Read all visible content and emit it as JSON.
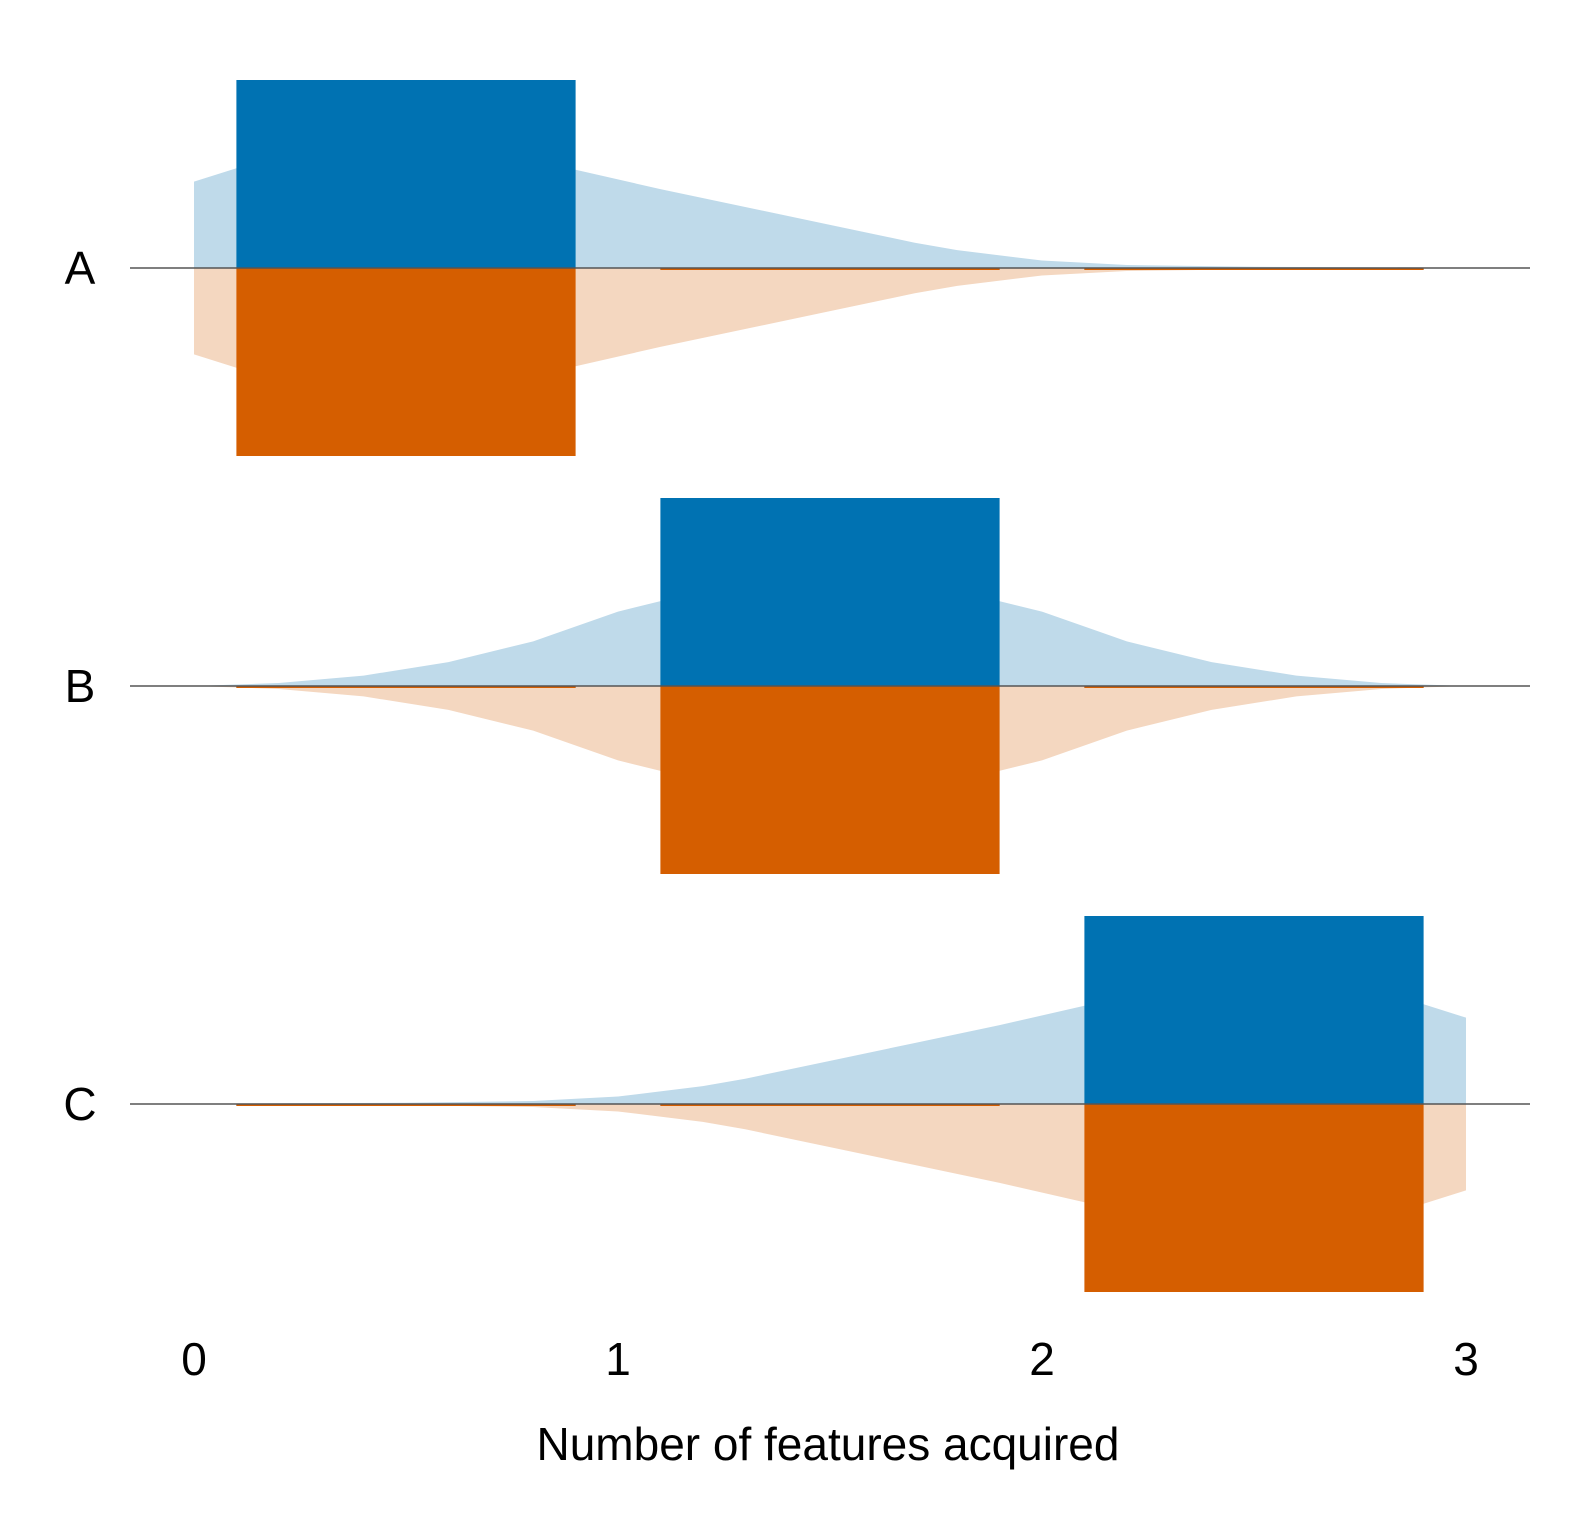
{
  "chart_data": {
    "type": "violin-bar",
    "xlabel": "Number of features acquired",
    "xlim": [
      0,
      3
    ],
    "x_ticks": [
      "0",
      "1",
      "2",
      "3"
    ],
    "colors": {
      "top_bar": "#0072b2",
      "top_density": "#bfdaea",
      "bottom_bar": "#d55e00",
      "bottom_density": "#f4d7c0",
      "baseline": "#555555"
    },
    "rows": [
      {
        "label": "A",
        "top": {
          "bars": [
            {
              "x": 0,
              "value": 1.0
            },
            {
              "x": 1,
              "value": 0.0
            },
            {
              "x": 2,
              "value": 0.0
            }
          ],
          "density": [
            {
              "x": 0.0,
              "y": 0.58
            },
            {
              "x": 0.1,
              "y": 0.67
            },
            {
              "x": 0.4,
              "y": 0.72
            },
            {
              "x": 0.9,
              "y": 0.66
            },
            {
              "x": 1.1,
              "y": 0.53
            },
            {
              "x": 1.3,
              "y": 0.41
            },
            {
              "x": 1.5,
              "y": 0.29
            },
            {
              "x": 1.7,
              "y": 0.17
            },
            {
              "x": 1.8,
              "y": 0.12
            },
            {
              "x": 2.0,
              "y": 0.05
            },
            {
              "x": 2.2,
              "y": 0.02
            },
            {
              "x": 2.5,
              "y": 0.008
            },
            {
              "x": 2.9,
              "y": 0.004
            }
          ]
        },
        "bottom": {
          "bars": [
            {
              "x": 0,
              "value": 1.0
            },
            {
              "x": 1,
              "value": 0.0
            },
            {
              "x": 2,
              "value": 0.0
            }
          ],
          "density": [
            {
              "x": 0.0,
              "y": 0.58
            },
            {
              "x": 0.1,
              "y": 0.67
            },
            {
              "x": 0.4,
              "y": 0.72
            },
            {
              "x": 0.9,
              "y": 0.66
            },
            {
              "x": 1.1,
              "y": 0.53
            },
            {
              "x": 1.3,
              "y": 0.41
            },
            {
              "x": 1.5,
              "y": 0.29
            },
            {
              "x": 1.7,
              "y": 0.17
            },
            {
              "x": 1.8,
              "y": 0.12
            },
            {
              "x": 2.0,
              "y": 0.05
            },
            {
              "x": 2.2,
              "y": 0.02
            },
            {
              "x": 2.5,
              "y": 0.008
            },
            {
              "x": 2.9,
              "y": 0.004
            }
          ]
        }
      },
      {
        "label": "B",
        "top": {
          "bars": [
            {
              "x": 0,
              "value": 0.0
            },
            {
              "x": 1,
              "value": 1.0
            },
            {
              "x": 2,
              "value": 0.0
            }
          ],
          "density": [
            {
              "x": 0.0,
              "y": 0.0
            },
            {
              "x": 0.2,
              "y": 0.02
            },
            {
              "x": 0.4,
              "y": 0.07
            },
            {
              "x": 0.6,
              "y": 0.16
            },
            {
              "x": 0.8,
              "y": 0.3
            },
            {
              "x": 1.0,
              "y": 0.5
            },
            {
              "x": 1.2,
              "y": 0.64
            },
            {
              "x": 1.5,
              "y": 0.7
            },
            {
              "x": 1.8,
              "y": 0.64
            },
            {
              "x": 2.0,
              "y": 0.5
            },
            {
              "x": 2.2,
              "y": 0.3
            },
            {
              "x": 2.4,
              "y": 0.16
            },
            {
              "x": 2.6,
              "y": 0.07
            },
            {
              "x": 2.8,
              "y": 0.02
            },
            {
              "x": 3.0,
              "y": 0.0
            }
          ]
        },
        "bottom": {
          "bars": [
            {
              "x": 0,
              "value": 0.0
            },
            {
              "x": 1,
              "value": 1.0
            },
            {
              "x": 2,
              "value": 0.0
            }
          ],
          "density": [
            {
              "x": 0.0,
              "y": 0.0
            },
            {
              "x": 0.2,
              "y": 0.02
            },
            {
              "x": 0.4,
              "y": 0.07
            },
            {
              "x": 0.6,
              "y": 0.16
            },
            {
              "x": 0.8,
              "y": 0.3
            },
            {
              "x": 1.0,
              "y": 0.5
            },
            {
              "x": 1.2,
              "y": 0.64
            },
            {
              "x": 1.5,
              "y": 0.7
            },
            {
              "x": 1.8,
              "y": 0.64
            },
            {
              "x": 2.0,
              "y": 0.5
            },
            {
              "x": 2.2,
              "y": 0.3
            },
            {
              "x": 2.4,
              "y": 0.16
            },
            {
              "x": 2.6,
              "y": 0.07
            },
            {
              "x": 2.8,
              "y": 0.02
            },
            {
              "x": 3.0,
              "y": 0.0
            }
          ]
        }
      },
      {
        "label": "C",
        "top": {
          "bars": [
            {
              "x": 0,
              "value": 0.0
            },
            {
              "x": 1,
              "value": 0.0
            },
            {
              "x": 2,
              "value": 1.0
            }
          ],
          "density": [
            {
              "x": 0.1,
              "y": 0.004
            },
            {
              "x": 0.5,
              "y": 0.008
            },
            {
              "x": 0.8,
              "y": 0.02
            },
            {
              "x": 1.0,
              "y": 0.05
            },
            {
              "x": 1.2,
              "y": 0.12
            },
            {
              "x": 1.3,
              "y": 0.17
            },
            {
              "x": 1.5,
              "y": 0.29
            },
            {
              "x": 1.7,
              "y": 0.41
            },
            {
              "x": 1.9,
              "y": 0.53
            },
            {
              "x": 2.1,
              "y": 0.66
            },
            {
              "x": 2.6,
              "y": 0.72
            },
            {
              "x": 2.9,
              "y": 0.67
            },
            {
              "x": 3.0,
              "y": 0.58
            }
          ]
        },
        "bottom": {
          "bars": [
            {
              "x": 0,
              "value": 0.0
            },
            {
              "x": 1,
              "value": 0.0
            },
            {
              "x": 2,
              "value": 1.0
            }
          ],
          "density": [
            {
              "x": 0.1,
              "y": 0.004
            },
            {
              "x": 0.5,
              "y": 0.008
            },
            {
              "x": 0.8,
              "y": 0.02
            },
            {
              "x": 1.0,
              "y": 0.05
            },
            {
              "x": 1.2,
              "y": 0.12
            },
            {
              "x": 1.3,
              "y": 0.17
            },
            {
              "x": 1.5,
              "y": 0.29
            },
            {
              "x": 1.7,
              "y": 0.41
            },
            {
              "x": 1.9,
              "y": 0.53
            },
            {
              "x": 2.1,
              "y": 0.66
            },
            {
              "x": 2.6,
              "y": 0.72
            },
            {
              "x": 2.9,
              "y": 0.67
            },
            {
              "x": 3.0,
              "y": 0.58
            }
          ]
        }
      }
    ]
  }
}
